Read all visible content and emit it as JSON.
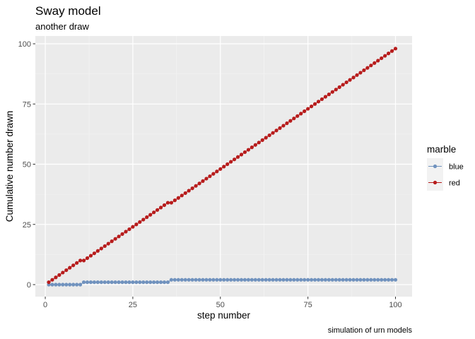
{
  "chart_data": {
    "type": "line",
    "title": "Sway model",
    "subtitle": "another draw",
    "xlabel": "step number",
    "ylabel": "Cumulative number drawn",
    "caption": "simulation of urn models",
    "xlim": [
      1,
      100
    ],
    "ylim": [
      0,
      100
    ],
    "x_ticks": [
      0,
      25,
      50,
      75,
      100
    ],
    "y_ticks": [
      0,
      25,
      50,
      75,
      100
    ],
    "grid": true,
    "legend": {
      "title": "marble",
      "position": "right"
    },
    "x": [
      1,
      2,
      3,
      4,
      5,
      6,
      7,
      8,
      9,
      10,
      11,
      12,
      13,
      14,
      15,
      16,
      17,
      18,
      19,
      20,
      21,
      22,
      23,
      24,
      25,
      26,
      27,
      28,
      29,
      30,
      31,
      32,
      33,
      34,
      35,
      36,
      37,
      38,
      39,
      40,
      41,
      42,
      43,
      44,
      45,
      46,
      47,
      48,
      49,
      50,
      51,
      52,
      53,
      54,
      55,
      56,
      57,
      58,
      59,
      60,
      61,
      62,
      63,
      64,
      65,
      66,
      67,
      68,
      69,
      70,
      71,
      72,
      73,
      74,
      75,
      76,
      77,
      78,
      79,
      80,
      81,
      82,
      83,
      84,
      85,
      86,
      87,
      88,
      89,
      90,
      91,
      92,
      93,
      94,
      95,
      96,
      97,
      98,
      99,
      100
    ],
    "series": [
      {
        "name": "blue",
        "color": "#7092be",
        "values": [
          0,
          0,
          0,
          0,
          0,
          0,
          0,
          0,
          0,
          0,
          1,
          1,
          1,
          1,
          1,
          1,
          1,
          1,
          1,
          1,
          1,
          1,
          1,
          1,
          1,
          1,
          1,
          1,
          1,
          1,
          1,
          1,
          1,
          1,
          1,
          2,
          2,
          2,
          2,
          2,
          2,
          2,
          2,
          2,
          2,
          2,
          2,
          2,
          2,
          2,
          2,
          2,
          2,
          2,
          2,
          2,
          2,
          2,
          2,
          2,
          2,
          2,
          2,
          2,
          2,
          2,
          2,
          2,
          2,
          2,
          2,
          2,
          2,
          2,
          2,
          2,
          2,
          2,
          2,
          2,
          2,
          2,
          2,
          2,
          2,
          2,
          2,
          2,
          2,
          2,
          2,
          2,
          2,
          2,
          2,
          2,
          2,
          2,
          2,
          2
        ]
      },
      {
        "name": "red",
        "color": "#b71c1c",
        "values": [
          1,
          2,
          3,
          4,
          5,
          6,
          7,
          8,
          9,
          10,
          10,
          11,
          12,
          13,
          14,
          15,
          16,
          17,
          18,
          19,
          20,
          21,
          22,
          23,
          24,
          25,
          26,
          27,
          28,
          29,
          30,
          31,
          32,
          33,
          34,
          34,
          35,
          36,
          37,
          38,
          39,
          40,
          41,
          42,
          43,
          44,
          45,
          46,
          47,
          48,
          49,
          50,
          51,
          52,
          53,
          54,
          55,
          56,
          57,
          58,
          59,
          60,
          61,
          62,
          63,
          64,
          65,
          66,
          67,
          68,
          69,
          70,
          71,
          72,
          73,
          74,
          75,
          76,
          77,
          78,
          79,
          80,
          81,
          82,
          83,
          84,
          85,
          86,
          87,
          88,
          89,
          90,
          91,
          92,
          93,
          94,
          95,
          96,
          97,
          98
        ]
      }
    ]
  }
}
